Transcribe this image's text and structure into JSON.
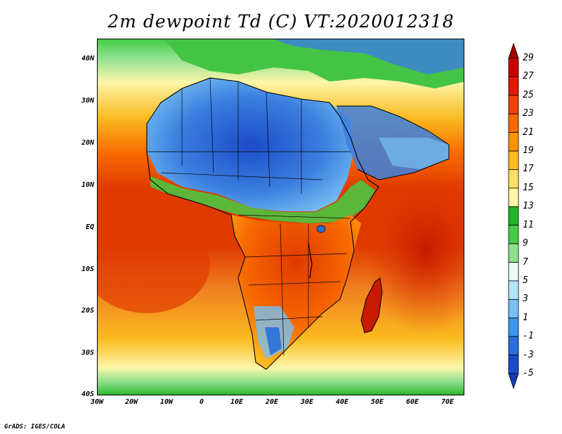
{
  "title": "2m dewpoint Td (C) VT:2020012318",
  "credit": "GrADS: IGES/COLA",
  "lat_labels": [
    "40N",
    "30N",
    "20N",
    "10N",
    "EQ",
    "10S",
    "20S",
    "30S",
    "40S"
  ],
  "lon_labels": [
    "30W",
    "20W",
    "10W",
    "0",
    "10E",
    "20E",
    "30E",
    "40E",
    "50E",
    "60E",
    "70E"
  ],
  "colorbar": {
    "labels": [
      "29",
      "27",
      "25",
      "23",
      "21",
      "19",
      "17",
      "15",
      "13",
      "11",
      "9",
      "7",
      "5",
      "3",
      "1",
      "-1",
      "-3",
      "-5"
    ],
    "colors": [
      "#a00000",
      "#c80000",
      "#e01a00",
      "#f04010",
      "#f86a00",
      "#fa9400",
      "#fbbb20",
      "#fbe066",
      "#fcf5a8",
      "#22b424",
      "#44cc44",
      "#8ee08e",
      "#e8fbf8",
      "#b4e6fb",
      "#78c0f2",
      "#3c96ee",
      "#2a6fdc",
      "#1c4bc8",
      "#183db8"
    ]
  },
  "colors": {
    "ocean_tropics": "#e03a00",
    "ocean_hot": "#c81a00",
    "ocean_subtropic": "#f8a020",
    "ocean_cool": "#fcdc60",
    "southern_green": "#44cc44",
    "sahara_blue": "#3c80e0",
    "sahara_deep": "#2a5fd0",
    "mediterranean_green": "#44c444"
  }
}
